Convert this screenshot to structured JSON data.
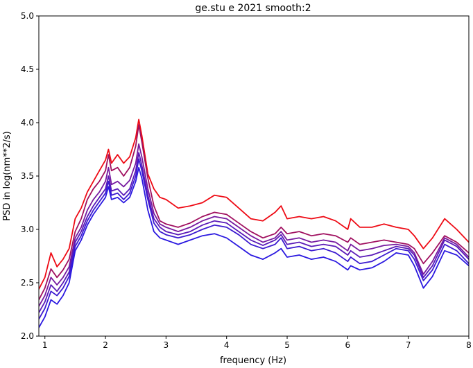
{
  "chart_data": {
    "type": "line",
    "title": "ge.stu e 2021 smooth:2",
    "xlabel": "frequency (Hz)",
    "ylabel": "PSD in log(nm**2/s)",
    "xlim": [
      0.9,
      8
    ],
    "ylim": [
      2.0,
      5.0
    ],
    "x_ticks": [
      1,
      2,
      3,
      4,
      5,
      6,
      7,
      8
    ],
    "x_tick_labels": [
      "1",
      "2",
      "3",
      "4",
      "5",
      "6",
      "7",
      "8"
    ],
    "y_ticks": [
      2.0,
      2.5,
      3.0,
      3.5,
      4.0,
      4.5,
      5.0
    ],
    "y_tick_labels": [
      "2.0",
      "2.5",
      "3.0",
      "3.5",
      "4.0",
      "4.5",
      "5.0"
    ],
    "grid": false,
    "legend": false,
    "x": [
      0.9,
      1.0,
      1.1,
      1.2,
      1.3,
      1.4,
      1.5,
      1.6,
      1.7,
      1.8,
      1.9,
      2.0,
      2.05,
      2.1,
      2.2,
      2.3,
      2.4,
      2.5,
      2.55,
      2.6,
      2.7,
      2.8,
      2.9,
      3.0,
      3.2,
      3.4,
      3.6,
      3.8,
      4.0,
      4.2,
      4.4,
      4.6,
      4.8,
      4.9,
      5.0,
      5.2,
      5.4,
      5.6,
      5.8,
      6.0,
      6.05,
      6.2,
      6.4,
      6.6,
      6.8,
      7.0,
      7.1,
      7.25,
      7.4,
      7.6,
      7.8,
      8.0
    ],
    "series": [
      {
        "color": "#ee0a14",
        "values": [
          2.44,
          2.55,
          2.78,
          2.65,
          2.72,
          2.82,
          3.1,
          3.2,
          3.35,
          3.45,
          3.55,
          3.65,
          3.75,
          3.62,
          3.7,
          3.62,
          3.68,
          3.86,
          4.03,
          3.88,
          3.52,
          3.38,
          3.3,
          3.28,
          3.2,
          3.22,
          3.25,
          3.32,
          3.3,
          3.2,
          3.1,
          3.08,
          3.16,
          3.22,
          3.1,
          3.12,
          3.1,
          3.12,
          3.08,
          3.0,
          3.1,
          3.02,
          3.02,
          3.05,
          3.02,
          3.0,
          2.94,
          2.82,
          2.92,
          3.1,
          3.0,
          2.88
        ]
      },
      {
        "color": "#a01060",
        "values": [
          2.34,
          2.45,
          2.63,
          2.55,
          2.62,
          2.72,
          2.98,
          3.1,
          3.28,
          3.38,
          3.45,
          3.55,
          3.7,
          3.55,
          3.58,
          3.5,
          3.58,
          3.78,
          3.98,
          3.82,
          3.48,
          3.22,
          3.08,
          3.05,
          3.02,
          3.06,
          3.12,
          3.16,
          3.14,
          3.06,
          2.98,
          2.92,
          2.96,
          3.02,
          2.96,
          2.98,
          2.94,
          2.96,
          2.94,
          2.88,
          2.92,
          2.86,
          2.88,
          2.9,
          2.88,
          2.86,
          2.82,
          2.68,
          2.78,
          2.94,
          2.88,
          2.78
        ]
      },
      {
        "color": "#761aa0",
        "values": [
          2.28,
          2.38,
          2.55,
          2.48,
          2.55,
          2.65,
          2.92,
          3.02,
          3.18,
          3.28,
          3.35,
          3.45,
          3.58,
          3.42,
          3.45,
          3.4,
          3.46,
          3.62,
          3.8,
          3.68,
          3.38,
          3.15,
          3.05,
          3.02,
          2.98,
          3.02,
          3.08,
          3.12,
          3.1,
          3.02,
          2.94,
          2.88,
          2.92,
          2.98,
          2.9,
          2.92,
          2.88,
          2.9,
          2.88,
          2.8,
          2.86,
          2.8,
          2.82,
          2.85,
          2.86,
          2.84,
          2.78,
          2.58,
          2.7,
          2.92,
          2.86,
          2.74
        ]
      },
      {
        "color": "#5a1ab8",
        "values": [
          2.22,
          2.32,
          2.48,
          2.42,
          2.5,
          2.6,
          2.88,
          2.98,
          3.12,
          3.22,
          3.3,
          3.38,
          3.5,
          3.36,
          3.38,
          3.32,
          3.38,
          3.55,
          3.72,
          3.6,
          3.32,
          3.1,
          3.02,
          2.98,
          2.95,
          2.98,
          3.04,
          3.08,
          3.06,
          2.98,
          2.9,
          2.85,
          2.9,
          2.95,
          2.86,
          2.88,
          2.84,
          2.86,
          2.84,
          2.76,
          2.8,
          2.74,
          2.76,
          2.8,
          2.84,
          2.82,
          2.76,
          2.55,
          2.66,
          2.9,
          2.84,
          2.72
        ]
      },
      {
        "color": "#3c1ad0",
        "values": [
          2.16,
          2.26,
          2.42,
          2.38,
          2.45,
          2.56,
          2.84,
          2.94,
          3.08,
          3.18,
          3.26,
          3.34,
          3.45,
          3.32,
          3.34,
          3.28,
          3.34,
          3.5,
          3.66,
          3.55,
          3.28,
          3.06,
          2.98,
          2.95,
          2.92,
          2.95,
          3.0,
          3.04,
          3.02,
          2.95,
          2.86,
          2.82,
          2.86,
          2.92,
          2.82,
          2.84,
          2.8,
          2.82,
          2.78,
          2.7,
          2.74,
          2.68,
          2.7,
          2.76,
          2.82,
          2.8,
          2.72,
          2.52,
          2.62,
          2.86,
          2.8,
          2.68
        ]
      },
      {
        "color": "#2a18e0",
        "values": [
          2.08,
          2.18,
          2.34,
          2.3,
          2.38,
          2.5,
          2.8,
          2.9,
          3.04,
          3.14,
          3.22,
          3.3,
          3.4,
          3.28,
          3.3,
          3.25,
          3.3,
          3.45,
          3.58,
          3.48,
          3.18,
          2.98,
          2.92,
          2.9,
          2.86,
          2.9,
          2.94,
          2.96,
          2.92,
          2.84,
          2.76,
          2.72,
          2.78,
          2.82,
          2.74,
          2.76,
          2.72,
          2.74,
          2.7,
          2.62,
          2.66,
          2.62,
          2.64,
          2.7,
          2.78,
          2.76,
          2.66,
          2.45,
          2.56,
          2.8,
          2.76,
          2.66
        ]
      }
    ]
  }
}
